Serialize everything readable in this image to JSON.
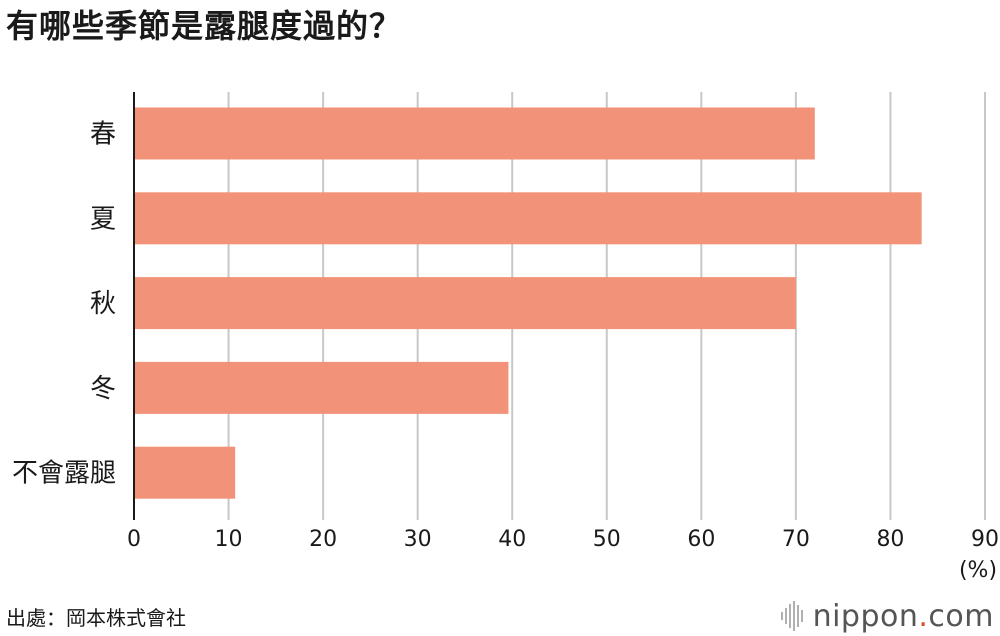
{
  "title": "有哪些季節是露腿度過的？",
  "source": "出處：岡本株式會社",
  "logo": {
    "name": "nippon",
    "dot": ".",
    "tld": "com"
  },
  "colors": {
    "bar": "#f29379",
    "grid": "#c8c8c8",
    "axis": "#1a1a1a"
  },
  "chart_data": {
    "type": "bar",
    "orientation": "horizontal",
    "categories": [
      "春",
      "夏",
      "秋",
      "冬",
      "不會露腿"
    ],
    "values": [
      72,
      83.3,
      70,
      39.6,
      10.7
    ],
    "ticks": [
      0,
      10,
      20,
      30,
      40,
      50,
      60,
      70,
      80,
      90
    ],
    "xlim": [
      0,
      90
    ],
    "unit": "(%)",
    "grid": true,
    "legend": "none"
  }
}
